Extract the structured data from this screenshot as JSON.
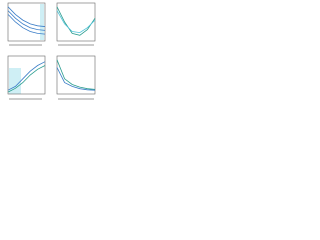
{
  "chart_data": [
    {
      "type": "line",
      "x": [
        0,
        2,
        4,
        6,
        8,
        10
      ],
      "xlim": [
        0,
        10
      ],
      "ylim": [
        0,
        10
      ],
      "series": [
        {
          "color": "#3a7dc8",
          "values": [
            9,
            7,
            5.5,
            4.5,
            4,
            3.8
          ]
        },
        {
          "color": "#3a7dc8",
          "values": [
            8,
            6,
            4.5,
            3.5,
            3,
            2.8
          ]
        },
        {
          "color": "#3a7dc8",
          "values": [
            7,
            5,
            3.5,
            2.5,
            2,
            1.8
          ]
        }
      ]
    },
    {
      "type": "line",
      "x": [
        0,
        2,
        4,
        6,
        8,
        10
      ],
      "xlim": [
        0,
        10
      ],
      "ylim": [
        0,
        10
      ],
      "series": [
        {
          "color": "#2a9d8f",
          "values": [
            9,
            5,
            2,
            1.5,
            3,
            6
          ]
        },
        {
          "color": "#4fc3d9",
          "values": [
            8,
            4.5,
            2.5,
            2.2,
            3.5,
            5.5
          ]
        }
      ]
    },
    {
      "type": "line",
      "x": [
        0,
        2,
        4,
        6,
        8,
        10
      ],
      "xlim": [
        0,
        10
      ],
      "ylim": [
        0,
        10
      ],
      "series": [
        {
          "color": "#3a7dc8",
          "values": [
            1,
            2,
            4,
            6,
            7.5,
            8.5
          ]
        },
        {
          "color": "#2a9d8f",
          "values": [
            0.5,
            1.5,
            3,
            5,
            6.5,
            7.5
          ]
        }
      ]
    },
    {
      "type": "line",
      "x": [
        0,
        2,
        4,
        6,
        8,
        10
      ],
      "xlim": [
        0,
        10
      ],
      "ylim": [
        0,
        10
      ],
      "series": [
        {
          "color": "#2a9d8f",
          "values": [
            9,
            4,
            2.5,
            1.8,
            1.4,
            1.2
          ]
        },
        {
          "color": "#3a7dc8",
          "values": [
            7,
            3,
            2,
            1.4,
            1.1,
            1
          ]
        }
      ]
    }
  ]
}
